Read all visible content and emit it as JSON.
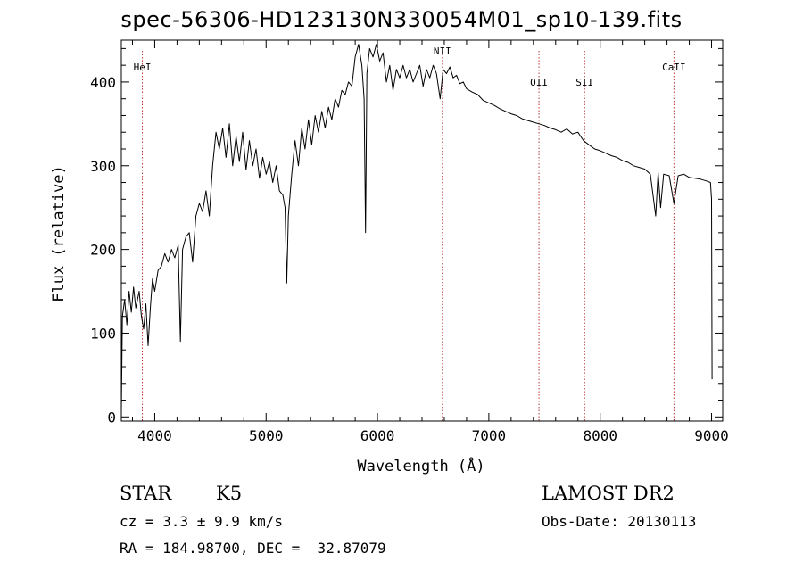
{
  "title": "spec-56306-HD123130N330054M01_sp10-139.fits",
  "chart_data": {
    "type": "line",
    "xlabel": "Wavelength (Å)",
    "ylabel": "Flux (relative)",
    "xlim": [
      3700,
      9100
    ],
    "ylim": [
      -5,
      450
    ],
    "xticks": [
      4000,
      5000,
      6000,
      7000,
      8000,
      9000
    ],
    "yticks": [
      0,
      100,
      200,
      300,
      400
    ],
    "series": [
      {
        "points": [
          [
            3700,
            5
          ],
          [
            3710,
            120
          ],
          [
            3730,
            140
          ],
          [
            3750,
            110
          ],
          [
            3770,
            150
          ],
          [
            3790,
            125
          ],
          [
            3810,
            155
          ],
          [
            3830,
            130
          ],
          [
            3860,
            150
          ],
          [
            3880,
            120
          ],
          [
            3900,
            105
          ],
          [
            3920,
            135
          ],
          [
            3940,
            85
          ],
          [
            3960,
            130
          ],
          [
            3980,
            165
          ],
          [
            4000,
            150
          ],
          [
            4030,
            175
          ],
          [
            4060,
            180
          ],
          [
            4090,
            195
          ],
          [
            4120,
            185
          ],
          [
            4150,
            200
          ],
          [
            4180,
            190
          ],
          [
            4210,
            205
          ],
          [
            4230,
            90
          ],
          [
            4250,
            200
          ],
          [
            4280,
            215
          ],
          [
            4310,
            220
          ],
          [
            4340,
            185
          ],
          [
            4370,
            240
          ],
          [
            4400,
            255
          ],
          [
            4430,
            245
          ],
          [
            4460,
            270
          ],
          [
            4490,
            240
          ],
          [
            4520,
            300
          ],
          [
            4550,
            340
          ],
          [
            4580,
            320
          ],
          [
            4610,
            345
          ],
          [
            4640,
            310
          ],
          [
            4670,
            350
          ],
          [
            4700,
            300
          ],
          [
            4730,
            335
          ],
          [
            4760,
            305
          ],
          [
            4790,
            340
          ],
          [
            4820,
            295
          ],
          [
            4850,
            330
          ],
          [
            4880,
            300
          ],
          [
            4910,
            320
          ],
          [
            4940,
            285
          ],
          [
            4970,
            310
          ],
          [
            5000,
            290
          ],
          [
            5030,
            305
          ],
          [
            5060,
            280
          ],
          [
            5090,
            300
          ],
          [
            5120,
            270
          ],
          [
            5150,
            265
          ],
          [
            5170,
            250
          ],
          [
            5185,
            160
          ],
          [
            5200,
            240
          ],
          [
            5230,
            290
          ],
          [
            5260,
            330
          ],
          [
            5290,
            300
          ],
          [
            5320,
            345
          ],
          [
            5350,
            320
          ],
          [
            5380,
            355
          ],
          [
            5410,
            325
          ],
          [
            5440,
            360
          ],
          [
            5470,
            340
          ],
          [
            5500,
            365
          ],
          [
            5530,
            345
          ],
          [
            5560,
            370
          ],
          [
            5590,
            355
          ],
          [
            5620,
            380
          ],
          [
            5650,
            370
          ],
          [
            5680,
            390
          ],
          [
            5710,
            385
          ],
          [
            5740,
            400
          ],
          [
            5770,
            395
          ],
          [
            5800,
            430
          ],
          [
            5830,
            445
          ],
          [
            5860,
            420
          ],
          [
            5880,
            380
          ],
          [
            5893,
            220
          ],
          [
            5905,
            410
          ],
          [
            5930,
            440
          ],
          [
            5960,
            430
          ],
          [
            5990,
            445
          ],
          [
            6020,
            425
          ],
          [
            6050,
            435
          ],
          [
            6080,
            400
          ],
          [
            6110,
            420
          ],
          [
            6140,
            390
          ],
          [
            6170,
            415
          ],
          [
            6200,
            405
          ],
          [
            6230,
            420
          ],
          [
            6260,
            405
          ],
          [
            6290,
            415
          ],
          [
            6320,
            400
          ],
          [
            6350,
            410
          ],
          [
            6380,
            420
          ],
          [
            6410,
            395
          ],
          [
            6440,
            415
          ],
          [
            6470,
            405
          ],
          [
            6500,
            420
          ],
          [
            6530,
            410
          ],
          [
            6563,
            380
          ],
          [
            6590,
            415
          ],
          [
            6620,
            410
          ],
          [
            6650,
            418
          ],
          [
            6680,
            405
          ],
          [
            6710,
            408
          ],
          [
            6740,
            398
          ],
          [
            6770,
            400
          ],
          [
            6800,
            392
          ],
          [
            6850,
            388
          ],
          [
            6900,
            385
          ],
          [
            6950,
            378
          ],
          [
            7000,
            375
          ],
          [
            7050,
            372
          ],
          [
            7100,
            368
          ],
          [
            7150,
            365
          ],
          [
            7200,
            362
          ],
          [
            7250,
            360
          ],
          [
            7300,
            356
          ],
          [
            7350,
            354
          ],
          [
            7400,
            352
          ],
          [
            7450,
            350
          ],
          [
            7500,
            348
          ],
          [
            7550,
            345
          ],
          [
            7600,
            343
          ],
          [
            7650,
            340
          ],
          [
            7700,
            344
          ],
          [
            7750,
            338
          ],
          [
            7800,
            340
          ],
          [
            7850,
            330
          ],
          [
            7900,
            325
          ],
          [
            7950,
            320
          ],
          [
            8000,
            318
          ],
          [
            8050,
            315
          ],
          [
            8100,
            312
          ],
          [
            8150,
            310
          ],
          [
            8200,
            306
          ],
          [
            8250,
            304
          ],
          [
            8300,
            300
          ],
          [
            8350,
            298
          ],
          [
            8400,
            296
          ],
          [
            8450,
            290
          ],
          [
            8498,
            240
          ],
          [
            8520,
            292
          ],
          [
            8542,
            250
          ],
          [
            8570,
            290
          ],
          [
            8620,
            288
          ],
          [
            8662,
            255
          ],
          [
            8700,
            288
          ],
          [
            8750,
            290
          ],
          [
            8800,
            286
          ],
          [
            8850,
            285
          ],
          [
            8900,
            284
          ],
          [
            8950,
            282
          ],
          [
            8990,
            280
          ],
          [
            9000,
            260
          ],
          [
            9005,
            45
          ]
        ]
      }
    ],
    "lines": [
      {
        "label": "HeI",
        "x": 3889
      },
      {
        "label": "NII",
        "x": 6583
      },
      {
        "label": "OII",
        "x": 7450
      },
      {
        "label": "SII",
        "x": 7860
      },
      {
        "label": "CaII",
        "x": 8662
      }
    ]
  },
  "info": {
    "obj_class": "STAR",
    "subclass": "K5",
    "survey": "LAMOST DR2",
    "cz": "cz = 3.3 ± 9.9 km/s",
    "obs_date": "Obs-Date: 20130113",
    "coords": "RA = 184.98700, DEC =  32.87079"
  }
}
